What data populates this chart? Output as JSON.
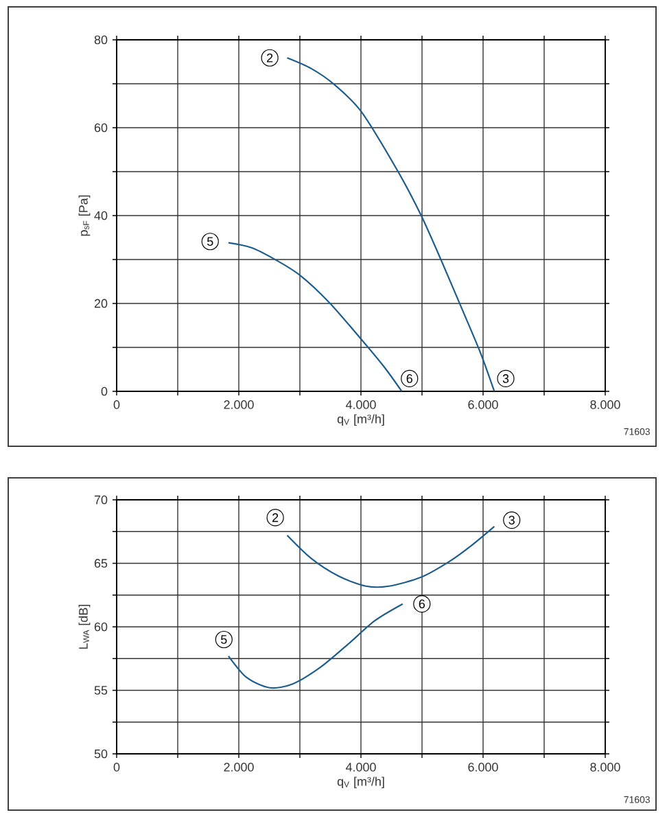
{
  "chart_data": [
    {
      "type": "line",
      "xlabel": "q$_{V}$ [m³/h]",
      "ylabel": "p$_{sF}$ [Pa]",
      "xlim": [
        0,
        8000
      ],
      "ylim": [
        0,
        80
      ],
      "xticks": [
        0,
        {
          "value": 1000,
          "label": null
        },
        {
          "value": 2000,
          "label": "2.000"
        },
        {
          "value": 3000,
          "label": null
        },
        {
          "value": 4000,
          "label": "4.000"
        },
        {
          "value": 5000,
          "label": null
        },
        {
          "value": 6000,
          "label": "6.000"
        },
        {
          "value": 7000,
          "label": null
        },
        {
          "value": 8000,
          "label": "8.000"
        }
      ],
      "yticks": [
        0,
        {
          "value": 10,
          "label": null
        },
        20,
        {
          "value": 30,
          "label": null
        },
        40,
        {
          "value": 50,
          "label": null
        },
        60,
        {
          "value": 70,
          "label": null
        },
        80
      ],
      "grid": true,
      "series": [
        {
          "color": "#1b5c8c",
          "x": [
            2792,
            3182,
            3557,
            4008,
            4608,
            4983,
            5321,
            5659,
            5959,
            6184
          ],
          "values": [
            75.9,
            73.5,
            69.9,
            63.6,
            50.0,
            40.1,
            29.6,
            18.6,
            8.7,
            0
          ]
        },
        {
          "color": "#1b5c8c",
          "x": [
            1831,
            2206,
            2582,
            2994,
            3482,
            4008,
            4383,
            4668
          ],
          "values": [
            33.8,
            32.7,
            30.1,
            26.5,
            20.2,
            11.8,
            5.5,
            0
          ]
        }
      ],
      "annotations": [
        {
          "text": "2",
          "x": 2507,
          "y": 75.9
        },
        {
          "text": "5",
          "x": 1531,
          "y": 34.1
        },
        {
          "text": "6",
          "x": 4795,
          "y": 2.9
        },
        {
          "text": "3",
          "x": 6371,
          "y": 2.9
        },
        "71603"
      ]
    },
    {
      "type": "line",
      "xlabel": "q$_{V}$ [m³/h]",
      "ylabel": "L$_{WA}$ [dB]",
      "xlim": [
        0,
        8000
      ],
      "ylim": [
        50,
        70
      ],
      "xticks": [
        0,
        {
          "value": 1000,
          "label": null
        },
        {
          "value": 2000,
          "label": "2.000"
        },
        {
          "value": 3000,
          "label": null
        },
        {
          "value": 4000,
          "label": "4.000"
        },
        {
          "value": 5000,
          "label": null
        },
        {
          "value": 6000,
          "label": "6.000"
        },
        {
          "value": 7000,
          "label": null
        },
        {
          "value": 8000,
          "label": "8.000"
        }
      ],
      "yticks": [
        50,
        {
          "value": 52.5,
          "label": null
        },
        55,
        {
          "value": 57.5,
          "label": null
        },
        60,
        {
          "value": 62.5,
          "label": null
        },
        65,
        {
          "value": 67.5,
          "label": null
        },
        70
      ],
      "grid": true,
      "series": [
        {
          "color": "#1b5c8c",
          "x": [
            2792,
            3182,
            3632,
            4083,
            4458,
            4983,
            5434,
            5809,
            6184
          ],
          "values": [
            67.2,
            65.4,
            64.0,
            63.2,
            63.2,
            63.9,
            65.1,
            66.4,
            67.9
          ]
        },
        {
          "color": "#1b5c8c",
          "x": [
            1831,
            2131,
            2507,
            2882,
            3332,
            3782,
            4233,
            4683
          ],
          "values": [
            57.7,
            56.0,
            55.2,
            55.5,
            56.8,
            58.6,
            60.5,
            61.8
          ]
        }
      ],
      "annotations": [
        {
          "text": "2",
          "x": 2597,
          "y": 68.6
        },
        {
          "text": "3",
          "x": 6469,
          "y": 68.4
        },
        {
          "text": "5",
          "x": 1756,
          "y": 59.0
        },
        {
          "text": "6",
          "x": 4998,
          "y": 61.8
        },
        "71603"
      ]
    }
  ]
}
